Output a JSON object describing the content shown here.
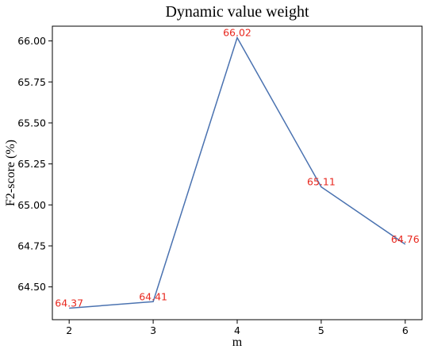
{
  "chart_data": {
    "type": "line",
    "title": "Dynamic value weight",
    "xlabel": "m",
    "ylabel": "F2-score (%)",
    "x": [
      2,
      3,
      4,
      5,
      6
    ],
    "series": [
      {
        "values": [
          64.37,
          64.41,
          66.02,
          65.11,
          64.76
        ]
      }
    ],
    "data_labels": [
      "64.37",
      "64.41",
      "66.02",
      "65.11",
      "64.76"
    ],
    "x_ticks": [
      "2",
      "3",
      "4",
      "5",
      "6"
    ],
    "y_ticks": [
      "64.50",
      "64.75",
      "65.00",
      "65.25",
      "65.50",
      "65.75",
      "66.00"
    ],
    "xlim": [
      1.8,
      6.2
    ],
    "ylim": [
      64.3,
      66.09
    ],
    "grid": false,
    "line_color": "#4a72b0",
    "label_color": "#e8281f"
  }
}
